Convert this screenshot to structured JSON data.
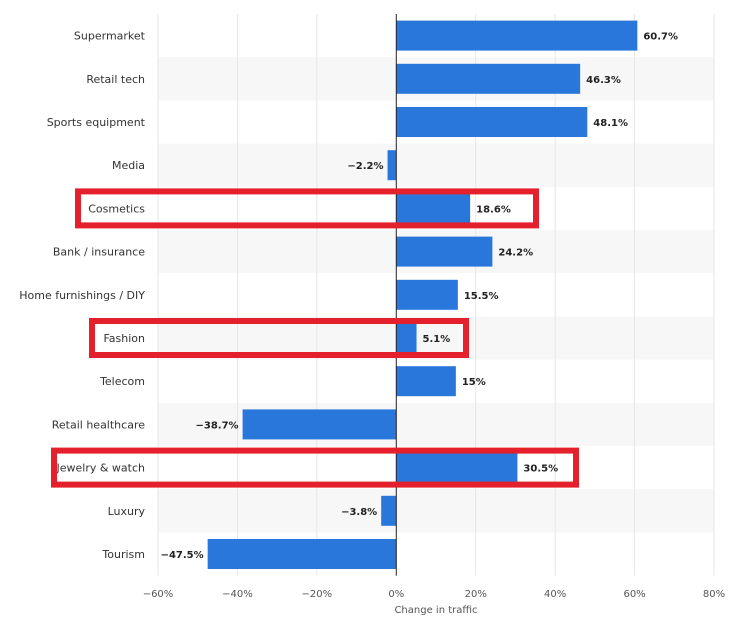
{
  "chart_data": {
    "type": "bar",
    "orientation": "horizontal",
    "xlabel": "Change in traffic",
    "xlim": [
      -60,
      80
    ],
    "xticks": [
      -60,
      -40,
      -20,
      0,
      20,
      40,
      60,
      80
    ],
    "xtick_labels": [
      "−60%",
      "−40%",
      "−20%",
      "0%",
      "20%",
      "40%",
      "60%",
      "80%"
    ],
    "grid": true,
    "categories": [
      "Supermarket",
      "Retail tech",
      "Sports equipment",
      "Media",
      "Cosmetics",
      "Bank / insurance",
      "Home furnishings / DIY",
      "Fashion",
      "Telecom",
      "Retail healthcare",
      "Jewelry & watch",
      "Luxury",
      "Tourism"
    ],
    "values": [
      60.7,
      46.3,
      48.1,
      -2.2,
      18.6,
      24.2,
      15.5,
      5.1,
      15,
      -38.7,
      30.5,
      -3.8,
      -47.5
    ],
    "value_labels": [
      "60.7%",
      "46.3%",
      "48.1%",
      "−2.2%",
      "18.6%",
      "24.2%",
      "15.5%",
      "5.1%",
      "15%",
      "−38.7%",
      "30.5%",
      "−3.8%",
      "−47.5%"
    ],
    "highlighted": [
      "Cosmetics",
      "Fashion",
      "Jewelry & watch"
    ],
    "colors": {
      "bar": "#2a77dc",
      "highlight": "#e3202b",
      "band": "#f7f7f7",
      "grid": "#e6e6e6",
      "axis": "#222222"
    }
  }
}
